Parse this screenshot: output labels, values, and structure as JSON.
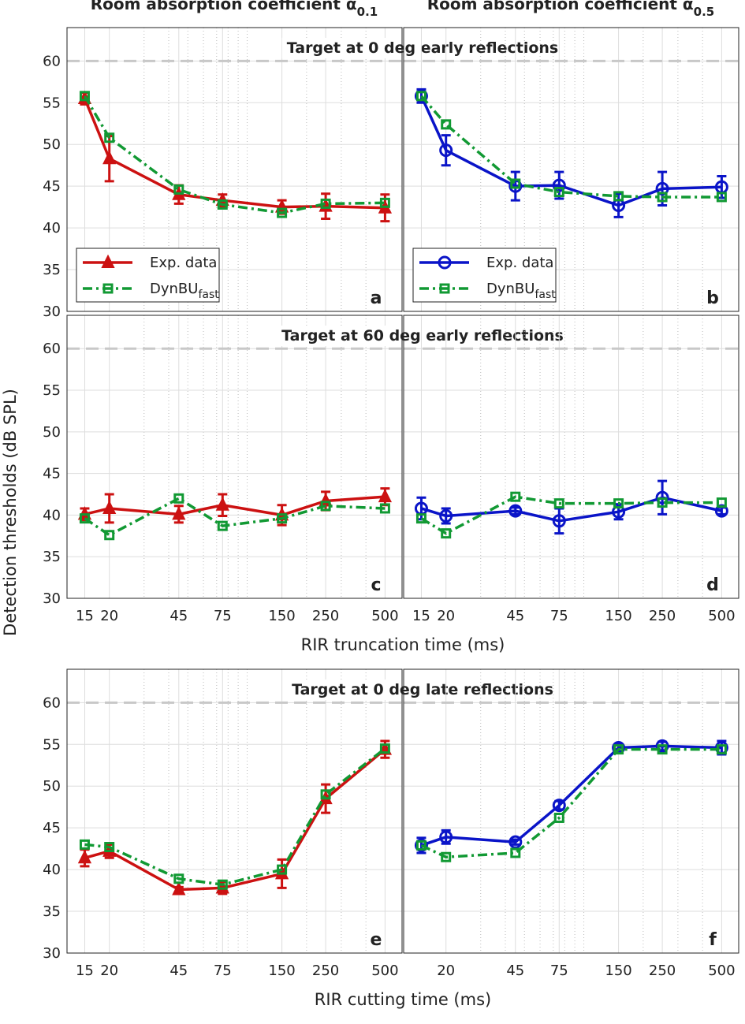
{
  "column_titles": [
    {
      "text": "Room absorption coefficient α",
      "sub": "0.1"
    },
    {
      "text": "Room absorption coefficient α",
      "sub": "0.5"
    }
  ],
  "ylabel": "Detection thresholds (dB SPL)",
  "chart_data": [
    {
      "type": "line",
      "title": "Target at 0 deg early reflections",
      "panel_label": "a",
      "legend": true,
      "xscale": "log",
      "xlim": [
        12.2,
        610
      ],
      "ylim": [
        30,
        64
      ],
      "x": [
        15,
        20,
        45,
        75,
        150,
        250,
        500
      ],
      "xticks": [
        15,
        20,
        45,
        75,
        150,
        250,
        500
      ],
      "xtick_labels": false,
      "xminorticks": [
        30,
        40,
        50,
        60,
        70,
        80,
        90,
        100,
        200,
        300,
        400
      ],
      "yticks": [
        30,
        35,
        40,
        45,
        50,
        55,
        60
      ],
      "grid": true,
      "hline": 60,
      "hline_color": "#c8c8c8",
      "series": [
        {
          "name": "Exp. data",
          "color": "#cc1111",
          "marker": "triangle",
          "dash": "solid",
          "values": [
            55.5,
            48.3,
            44.0,
            43.3,
            42.5,
            42.6,
            42.4
          ],
          "errors": [
            0.7,
            2.7,
            1.1,
            0.7,
            0.8,
            1.5,
            1.6
          ]
        },
        {
          "name": "DynBU",
          "sub": "fast",
          "color": "#119933",
          "marker": "square",
          "dash": "dashdot",
          "values": [
            55.8,
            50.8,
            44.6,
            42.8,
            41.8,
            42.9,
            43.0
          ]
        }
      ]
    },
    {
      "type": "line",
      "panel_label": "b",
      "legend": true,
      "xscale": "log",
      "xlim": [
        12.2,
        610
      ],
      "ylim": [
        30,
        64
      ],
      "x": [
        15,
        20,
        45,
        75,
        150,
        250,
        500
      ],
      "xticks": [
        15,
        20,
        45,
        75,
        150,
        250,
        500
      ],
      "xtick_labels": false,
      "xminorticks": [
        30,
        40,
        50,
        60,
        70,
        80,
        90,
        100,
        200,
        300,
        400
      ],
      "yticks": [
        30,
        35,
        40,
        45,
        50,
        55,
        60
      ],
      "ytick_labels": false,
      "grid": true,
      "hline": 60,
      "hline_color": "#c8c8c8",
      "series": [
        {
          "name": "Exp. data",
          "color": "#0a14c8",
          "marker": "circle",
          "dash": "solid",
          "values": [
            55.8,
            49.3,
            45.0,
            45.1,
            42.7,
            44.7,
            44.9
          ],
          "errors": [
            0.8,
            1.8,
            1.7,
            1.6,
            1.4,
            2.0,
            1.3
          ]
        },
        {
          "name": "DynBU",
          "sub": "fast",
          "color": "#119933",
          "marker": "square",
          "dash": "dashdot",
          "values": [
            55.8,
            52.4,
            45.3,
            44.3,
            43.8,
            43.7,
            43.7
          ]
        }
      ]
    },
    {
      "type": "line",
      "title": "Target at 60 deg early reflections",
      "panel_label": "c",
      "xlabel": "RIR truncation time (ms)",
      "xscale": "log",
      "xlim": [
        12.2,
        610
      ],
      "ylim": [
        30,
        64
      ],
      "x": [
        15,
        20,
        45,
        75,
        150,
        250,
        500
      ],
      "xticks": [
        15,
        20,
        45,
        75,
        150,
        250,
        500
      ],
      "xminorticks": [
        30,
        40,
        50,
        60,
        70,
        80,
        90,
        100,
        200,
        300,
        400
      ],
      "yticks": [
        30,
        35,
        40,
        45,
        50,
        55,
        60
      ],
      "grid": true,
      "hline": 60,
      "hline_color": "#c8c8c8",
      "series": [
        {
          "name": "Exp. data",
          "color": "#cc1111",
          "marker": "triangle",
          "dash": "solid",
          "values": [
            40.1,
            40.8,
            40.1,
            41.2,
            40.0,
            41.7,
            42.2
          ],
          "errors": [
            0.7,
            1.7,
            1.0,
            1.3,
            1.2,
            1.1,
            1.0
          ]
        },
        {
          "name": "DynBU",
          "sub": "fast",
          "color": "#119933",
          "marker": "square",
          "dash": "dashdot",
          "values": [
            39.6,
            37.6,
            42.0,
            38.7,
            39.6,
            41.1,
            40.8
          ]
        }
      ]
    },
    {
      "type": "line",
      "panel_label": "d",
      "xscale": "log",
      "xlim": [
        12.2,
        610
      ],
      "ylim": [
        30,
        64
      ],
      "x": [
        15,
        20,
        45,
        75,
        150,
        250,
        500
      ],
      "xticks": [
        15,
        20,
        45,
        75,
        150,
        250,
        500
      ],
      "xminorticks": [
        30,
        40,
        50,
        60,
        70,
        80,
        90,
        100,
        200,
        300,
        400
      ],
      "yticks": [
        30,
        35,
        40,
        45,
        50,
        55,
        60
      ],
      "ytick_labels": false,
      "grid": true,
      "hline": 60,
      "hline_color": "#c8c8c8",
      "series": [
        {
          "name": "Exp. data",
          "color": "#0a14c8",
          "marker": "circle",
          "dash": "solid",
          "values": [
            40.8,
            39.9,
            40.5,
            39.3,
            40.4,
            42.1,
            40.5
          ],
          "errors": [
            1.3,
            0.9,
            0.4,
            1.5,
            0.9,
            2.0,
            0.4
          ]
        },
        {
          "name": "DynBU",
          "sub": "fast",
          "color": "#119933",
          "marker": "square",
          "dash": "dashdot",
          "values": [
            39.6,
            37.8,
            42.2,
            41.4,
            41.4,
            41.5,
            41.5
          ]
        }
      ]
    },
    {
      "type": "line",
      "title": "Target at 0 deg late reflections",
      "panel_label": "e",
      "xlabel": "RIR cutting time (ms)",
      "xscale": "log",
      "xlim": [
        12.2,
        610
      ],
      "ylim": [
        30,
        64
      ],
      "x": [
        15,
        20,
        45,
        75,
        150,
        250,
        500
      ],
      "xticks": [
        15,
        20,
        45,
        75,
        150,
        250,
        500
      ],
      "xminorticks": [
        30,
        40,
        50,
        60,
        70,
        80,
        90,
        100,
        200,
        300,
        400
      ],
      "yticks": [
        30,
        35,
        40,
        45,
        50,
        55,
        60
      ],
      "grid": true,
      "hline": 60,
      "hline_color": "#c8c8c8",
      "series": [
        {
          "name": "Exp. data",
          "color": "#cc1111",
          "marker": "triangle",
          "dash": "solid",
          "values": [
            41.4,
            42.2,
            37.6,
            37.8,
            39.5,
            48.5,
            54.4
          ],
          "errors": [
            1.0,
            0.8,
            0.3,
            0.7,
            1.7,
            1.7,
            1.0
          ]
        },
        {
          "name": "DynBU",
          "sub": "fast",
          "color": "#119933",
          "marker": "square",
          "dash": "dashdot",
          "values": [
            43.0,
            42.7,
            38.9,
            38.2,
            40.0,
            49.0,
            54.5
          ]
        }
      ]
    },
    {
      "type": "line",
      "panel_label": "f",
      "xscale": "log",
      "xlim": [
        12.2,
        610
      ],
      "ylim": [
        30,
        64
      ],
      "x": [
        15,
        20,
        45,
        75,
        150,
        250,
        500
      ],
      "xticks": [
        20,
        45,
        75,
        150,
        250,
        500
      ],
      "xminorticks": [
        30,
        40,
        50,
        60,
        70,
        80,
        90,
        100,
        200,
        300,
        400
      ],
      "yticks": [
        30,
        35,
        40,
        45,
        50,
        55,
        60
      ],
      "ytick_labels": false,
      "grid": true,
      "hline": 60,
      "hline_color": "#c8c8c8",
      "series": [
        {
          "name": "Exp. data",
          "color": "#0a14c8",
          "marker": "circle",
          "dash": "solid",
          "values": [
            42.9,
            43.9,
            43.3,
            47.7,
            54.6,
            54.8,
            54.6
          ],
          "errors": [
            0.9,
            0.8,
            0.3,
            0.5,
            0.4,
            0.5,
            0.8
          ]
        },
        {
          "name": "DynBU",
          "sub": "fast",
          "color": "#119933",
          "marker": "square",
          "dash": "dashdot",
          "values": [
            42.9,
            41.5,
            42.0,
            46.2,
            54.4,
            54.4,
            54.4
          ]
        }
      ]
    }
  ]
}
